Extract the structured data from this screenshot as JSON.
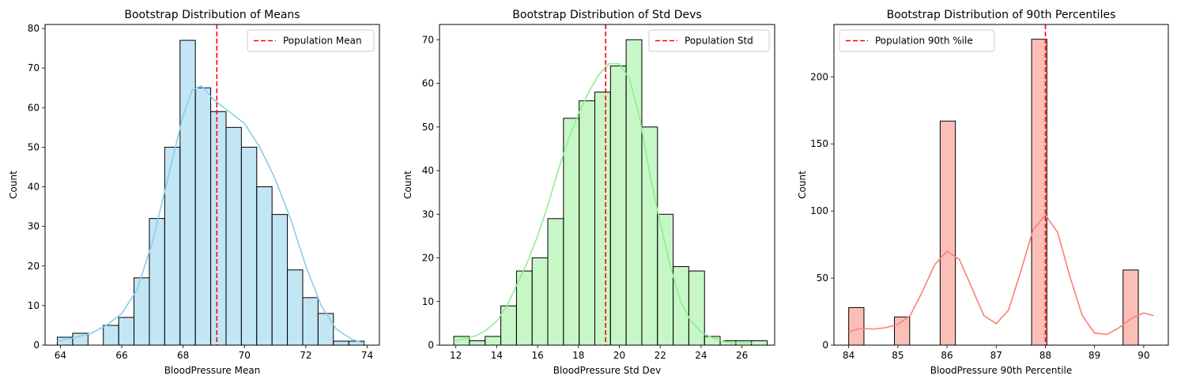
{
  "chart_data": [
    {
      "type": "histogram",
      "title": "Bootstrap Distribution of Means",
      "xlabel": "BloodPressure Mean",
      "ylabel": "Count",
      "xlim": [
        63.5,
        74.4
      ],
      "ylim": [
        0,
        81
      ],
      "xticks": [
        64,
        66,
        68,
        70,
        72,
        74
      ],
      "yticks": [
        0,
        10,
        20,
        30,
        40,
        50,
        60,
        70,
        80
      ],
      "color": "#87ceeb",
      "kde_color": "#87ceeb",
      "bins": [
        {
          "x0": 63.9,
          "x1": 64.4,
          "count": 2
        },
        {
          "x0": 64.4,
          "x1": 64.9,
          "count": 3
        },
        {
          "x0": 64.9,
          "x1": 65.4,
          "count": 0
        },
        {
          "x0": 65.4,
          "x1": 65.9,
          "count": 5
        },
        {
          "x0": 65.9,
          "x1": 66.4,
          "count": 7
        },
        {
          "x0": 66.4,
          "x1": 66.9,
          "count": 17
        },
        {
          "x0": 66.9,
          "x1": 67.4,
          "count": 32
        },
        {
          "x0": 67.4,
          "x1": 67.9,
          "count": 50
        },
        {
          "x0": 67.9,
          "x1": 68.4,
          "count": 77
        },
        {
          "x0": 68.4,
          "x1": 68.9,
          "count": 65
        },
        {
          "x0": 68.9,
          "x1": 69.4,
          "count": 59
        },
        {
          "x0": 69.4,
          "x1": 69.9,
          "count": 55
        },
        {
          "x0": 69.9,
          "x1": 70.4,
          "count": 50
        },
        {
          "x0": 70.4,
          "x1": 70.9,
          "count": 40
        },
        {
          "x0": 70.9,
          "x1": 71.4,
          "count": 33
        },
        {
          "x0": 71.4,
          "x1": 71.9,
          "count": 19
        },
        {
          "x0": 71.9,
          "x1": 72.4,
          "count": 12
        },
        {
          "x0": 72.4,
          "x1": 72.9,
          "count": 8
        },
        {
          "x0": 72.9,
          "x1": 73.4,
          "count": 1
        },
        {
          "x0": 73.4,
          "x1": 73.9,
          "count": 1
        }
      ],
      "kde": {
        "x": [
          63.9,
          64.5,
          65.0,
          65.5,
          66.0,
          66.5,
          67.0,
          67.5,
          68.0,
          68.3,
          68.6,
          69.0,
          69.5,
          70.0,
          70.5,
          71.0,
          71.5,
          72.0,
          72.5,
          73.0,
          73.5,
          73.9
        ],
        "y": [
          1.0,
          2.0,
          3.0,
          5.0,
          8.0,
          14.0,
          26.0,
          42.0,
          58.0,
          64.5,
          65.5,
          62.0,
          59.0,
          56.0,
          50.0,
          42.0,
          32.0,
          20.0,
          10.0,
          4.0,
          1.5,
          0.5
        ]
      },
      "vline": {
        "x": 69.1,
        "label": "Population Mean",
        "color": "#ff0000"
      },
      "legend_loc": "upper right"
    },
    {
      "type": "histogram",
      "title": "Bootstrap Distribution of Std Devs",
      "xlabel": "BloodPressure Std Dev",
      "ylabel": "Count",
      "xlim": [
        11.2,
        27.6
      ],
      "ylim": [
        0,
        73.5
      ],
      "xticks": [
        12,
        14,
        16,
        18,
        20,
        22,
        24,
        26
      ],
      "yticks": [
        0,
        10,
        20,
        30,
        40,
        50,
        60,
        70
      ],
      "color": "#90ee90",
      "kde_color": "#90ee90",
      "bins": [
        {
          "x0": 11.9,
          "x1": 12.667,
          "count": 2
        },
        {
          "x0": 12.667,
          "x1": 13.433,
          "count": 1
        },
        {
          "x0": 13.433,
          "x1": 14.2,
          "count": 2
        },
        {
          "x0": 14.2,
          "x1": 14.967,
          "count": 9
        },
        {
          "x0": 14.967,
          "x1": 15.733,
          "count": 17
        },
        {
          "x0": 15.733,
          "x1": 16.5,
          "count": 20
        },
        {
          "x0": 16.5,
          "x1": 17.267,
          "count": 29
        },
        {
          "x0": 17.267,
          "x1": 18.033,
          "count": 52
        },
        {
          "x0": 18.033,
          "x1": 18.8,
          "count": 56
        },
        {
          "x0": 18.8,
          "x1": 19.567,
          "count": 58
        },
        {
          "x0": 19.567,
          "x1": 20.333,
          "count": 64
        },
        {
          "x0": 20.333,
          "x1": 21.1,
          "count": 70
        },
        {
          "x0": 21.1,
          "x1": 21.867,
          "count": 50
        },
        {
          "x0": 21.867,
          "x1": 22.633,
          "count": 30
        },
        {
          "x0": 22.633,
          "x1": 23.4,
          "count": 18
        },
        {
          "x0": 23.4,
          "x1": 24.167,
          "count": 17
        },
        {
          "x0": 24.167,
          "x1": 24.933,
          "count": 2
        },
        {
          "x0": 24.933,
          "x1": 25.7,
          "count": 1
        },
        {
          "x0": 25.7,
          "x1": 26.467,
          "count": 1
        },
        {
          "x0": 26.467,
          "x1": 27.233,
          "count": 1
        }
      ],
      "kde": {
        "x": [
          11.9,
          12.5,
          13.0,
          13.5,
          14.0,
          14.5,
          15.0,
          15.5,
          16.0,
          16.5,
          17.0,
          17.5,
          18.0,
          18.5,
          19.0,
          19.5,
          20.0,
          20.5,
          21.0,
          21.5,
          22.0,
          22.5,
          23.0,
          23.5,
          24.0,
          24.5,
          25.0,
          25.5,
          26.0,
          26.5
        ],
        "y": [
          1.0,
          1.5,
          2.2,
          3.5,
          5.5,
          9.0,
          14.0,
          19.0,
          25.0,
          32.0,
          40.0,
          47.0,
          53.0,
          58.0,
          62.0,
          64.5,
          64.5,
          61.0,
          52.0,
          39.0,
          28.0,
          18.0,
          10.0,
          5.5,
          3.0,
          1.8,
          1.0,
          0.5,
          0.6,
          0.5
        ]
      },
      "vline": {
        "x": 19.33,
        "label": "Population Std",
        "color": "#ff0000"
      },
      "legend_loc": "upper right"
    },
    {
      "type": "histogram",
      "title": "Bootstrap Distribution of 90th Percentiles",
      "xlabel": "BloodPressure 90th Percentile",
      "ylabel": "Count",
      "xlim": [
        83.7,
        90.5
      ],
      "ylim": [
        0,
        239
      ],
      "xticks": [
        84,
        85,
        86,
        87,
        88,
        89,
        90
      ],
      "yticks": [
        0,
        50,
        100,
        150,
        200
      ],
      "color": "#fa8072",
      "kde_color": "#fa8072",
      "bins": [
        {
          "x0": 84.0,
          "x1": 84.31,
          "count": 28
        },
        {
          "x0": 84.31,
          "x1": 84.62,
          "count": 0
        },
        {
          "x0": 84.62,
          "x1": 84.93,
          "count": 0
        },
        {
          "x0": 84.93,
          "x1": 85.24,
          "count": 21
        },
        {
          "x0": 85.24,
          "x1": 85.55,
          "count": 0
        },
        {
          "x0": 85.55,
          "x1": 85.86,
          "count": 0
        },
        {
          "x0": 85.86,
          "x1": 86.17,
          "count": 167
        },
        {
          "x0": 86.17,
          "x1": 86.48,
          "count": 0
        },
        {
          "x0": 86.48,
          "x1": 86.79,
          "count": 0
        },
        {
          "x0": 86.79,
          "x1": 87.1,
          "count": 0
        },
        {
          "x0": 87.1,
          "x1": 87.41,
          "count": 0
        },
        {
          "x0": 87.41,
          "x1": 87.72,
          "count": 0
        },
        {
          "x0": 87.72,
          "x1": 88.03,
          "count": 228
        },
        {
          "x0": 88.03,
          "x1": 88.34,
          "count": 0
        },
        {
          "x0": 88.34,
          "x1": 88.65,
          "count": 0
        },
        {
          "x0": 88.65,
          "x1": 88.96,
          "count": 0
        },
        {
          "x0": 88.96,
          "x1": 89.27,
          "count": 0
        },
        {
          "x0": 89.27,
          "x1": 89.58,
          "count": 0
        },
        {
          "x0": 89.58,
          "x1": 89.89,
          "count": 56
        }
      ],
      "kde": {
        "x": [
          84.0,
          84.25,
          84.5,
          84.75,
          85.0,
          85.25,
          85.5,
          85.75,
          86.0,
          86.25,
          86.5,
          86.75,
          87.0,
          87.25,
          87.5,
          87.75,
          88.0,
          88.25,
          88.5,
          88.75,
          89.0,
          89.25,
          89.5,
          89.75,
          90.0,
          90.2
        ],
        "y": [
          10,
          12.5,
          12,
          13,
          15.5,
          22,
          40,
          60,
          70,
          64,
          43,
          22,
          16,
          26,
          55,
          86,
          97,
          84,
          51,
          22,
          9,
          8,
          13,
          20,
          24,
          22
        ]
      },
      "vline": {
        "x": 88.0,
        "label": "Population 90th %ile",
        "color": "#ff0000"
      },
      "legend_loc": "upper left"
    }
  ]
}
